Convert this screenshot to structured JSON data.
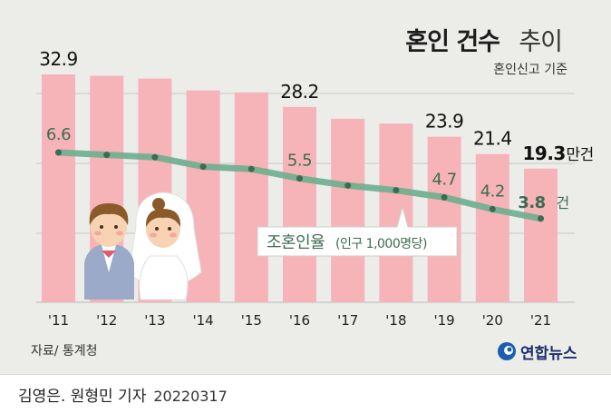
{
  "title": "혼인 건수",
  "title_suffix": "추이",
  "note": "혼인신고 기준",
  "source": "자료/ 통계청",
  "credit": "김영은. 원형민 기자",
  "date": "20220317",
  "logo_text": "연합뉴스",
  "colors": {
    "bar": "#f6b3b8",
    "line": "#6dae8e",
    "marker": "#3d6b52",
    "background": "#ecece9",
    "grid": "#c9c9c4"
  },
  "chart_data": {
    "type": "bar",
    "categories": [
      "'11",
      "'12",
      "'13",
      "'14",
      "'15",
      "'16",
      "'17",
      "'18",
      "'19",
      "'20",
      "'21"
    ],
    "series": [
      {
        "values": [
          32.9,
          32.7,
          32.3,
          30.6,
          30.3,
          28.2,
          26.5,
          25.8,
          23.9,
          21.4,
          19.3
        ]
      },
      {
        "name": "조혼인율",
        "values": [
          6.6,
          6.5,
          6.4,
          6.0,
          5.9,
          5.5,
          5.2,
          5.0,
          4.7,
          4.2,
          3.8
        ]
      }
    ],
    "bar_labels": [
      {
        "index": 0,
        "text": "32.9"
      },
      {
        "index": 5,
        "text": "28.2"
      },
      {
        "index": 8,
        "text": "23.9"
      },
      {
        "index": 9,
        "text": "21.4"
      },
      {
        "index": 10,
        "text": "19.3",
        "unit": "만건"
      }
    ],
    "line_labels": [
      {
        "index": 0,
        "text": "6.6"
      },
      {
        "index": 5,
        "text": "5.5"
      },
      {
        "index": 8,
        "text": "4.7"
      },
      {
        "index": 9,
        "text": "4.2"
      },
      {
        "index": 10,
        "text": "3.8",
        "unit": "건"
      }
    ],
    "line_legend": {
      "name": "조혼인율",
      "detail": "(인구 1,000명당)"
    },
    "grid": true
  }
}
